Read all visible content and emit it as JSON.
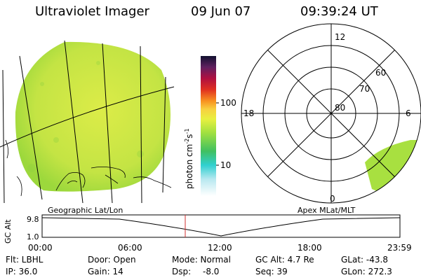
{
  "header": {
    "title": "Ultraviolet Imager",
    "date": "09 Jun 07",
    "time": "09:39:24 UT"
  },
  "colorbar": {
    "unit_base": "photon cm",
    "unit_exp1": "-2",
    "unit_mid": "s",
    "unit_exp2": "-1",
    "ticks": [
      "100",
      "10"
    ]
  },
  "polar": {
    "lat_labels": [
      "80",
      "70",
      "60"
    ],
    "mlt_labels": {
      "top": "12",
      "bottom": "0",
      "left": "18",
      "right": "6"
    }
  },
  "strip": {
    "left_label": "Geographic Lat/Lon",
    "right_label": "Apex MLat/MLT",
    "axis_title": "GC Alt",
    "y_labels": [
      "9.8",
      "1.0"
    ],
    "x_ticks": [
      "00:00",
      "06:00",
      "12:00",
      "18:00",
      "23:59"
    ]
  },
  "info": {
    "row1": [
      "Flt: LBHL",
      "Door: Open",
      "Mode: Normal",
      "GC Alt: 4.7 Re",
      "GLat: -43.8"
    ],
    "row2": [
      "IP: 36.0",
      "Gain: 14",
      "Dsp:",
      "-8.0",
      "Seq: 39",
      "GLon: 272.3"
    ]
  },
  "colors": {
    "image_green": "#a8e040",
    "image_yellow": "#d8ec44",
    "cursor_red": "#d03030"
  }
}
